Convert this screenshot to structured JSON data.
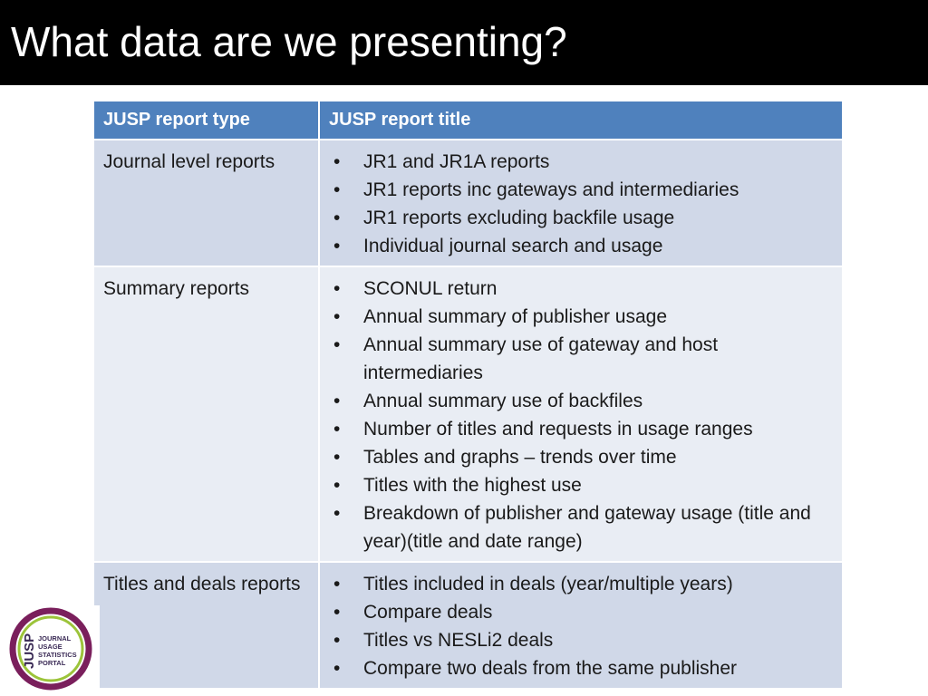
{
  "slide": {
    "title": "What data are we presenting?"
  },
  "table": {
    "headers": [
      "JUSP report type",
      "JUSP report title"
    ],
    "rows": [
      {
        "type": "Journal level reports",
        "titles": [
          "JR1 and JR1A reports",
          "JR1 reports inc gateways and intermediaries",
          "JR1 reports excluding backfile usage",
          "Individual journal search and usage"
        ]
      },
      {
        "type": "Summary reports",
        "titles": [
          "SCONUL return",
          "Annual summary of publisher usage",
          "Annual summary use of gateway and host intermediaries",
          "Annual summary use of backfiles",
          "Number of titles and requests in usage ranges",
          "Tables and graphs – trends over time",
          "Titles with the highest use",
          "Breakdown of publisher and gateway usage (title and year)(title and date range)"
        ]
      },
      {
        "type": "Titles and deals reports",
        "titles": [
          "Titles included in deals (year/multiple years)",
          "Compare deals",
          "Titles vs NESLi2 deals",
          "Compare two deals from the same publisher"
        ]
      }
    ]
  },
  "bullet_symbol": "•",
  "logo": {
    "acronym": "JUSP",
    "lines": [
      "JOURNAL",
      "USAGE",
      "STATISTICS",
      "PORTAL"
    ],
    "colors": {
      "ring_outer": "#7a1f5c",
      "ring_inner": "#9cc43a",
      "text": "#3a2a55"
    }
  },
  "colors": {
    "title_bar": "#000000",
    "header_fill": "#4f81bd",
    "row_dark": "#d0d8e8",
    "row_light": "#e9edf4"
  }
}
